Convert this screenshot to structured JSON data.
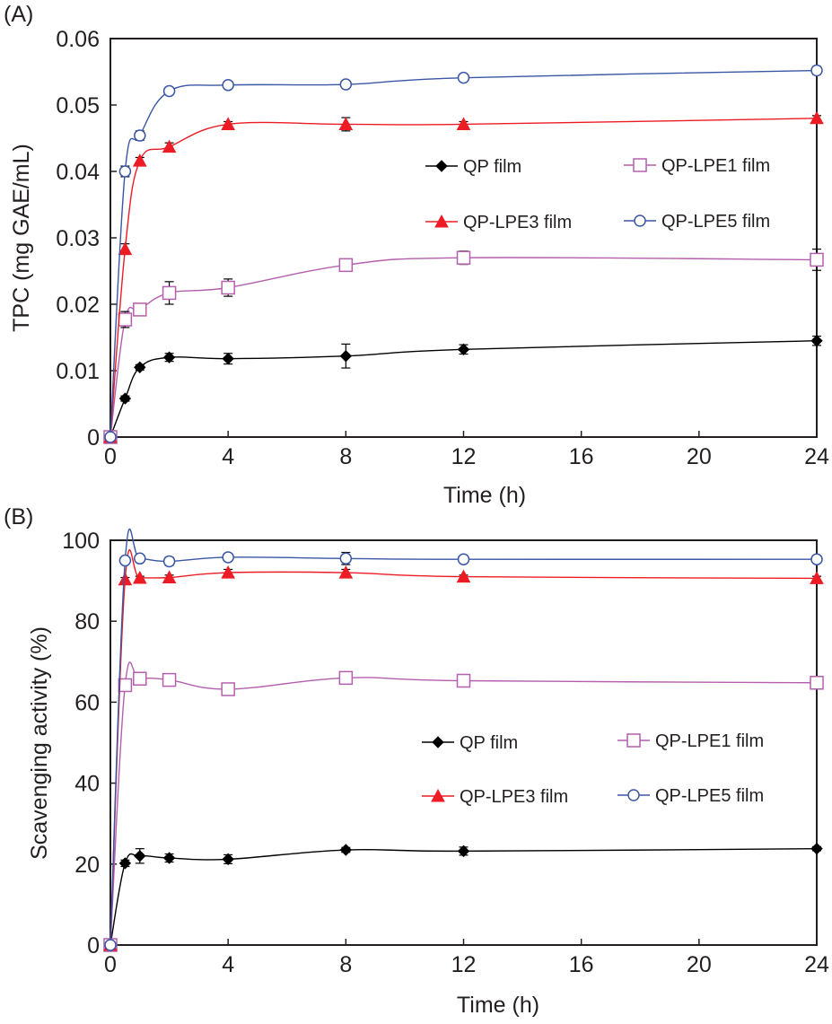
{
  "figure": {
    "panels": [
      "(A)",
      "(B)"
    ]
  },
  "legend_labels": [
    "QP film",
    "QP-LPE1 film",
    "QP-LPE3 film",
    "QP-LPE5 film"
  ],
  "colors": {
    "QP film": "#000000",
    "QP-LPE1 film": "#b45fae",
    "QP-LPE3 film": "#ed1c24",
    "QP-LPE5 film": "#3a56a5",
    "axis": "#231f20"
  },
  "chart_data": [
    {
      "type": "line",
      "panel": "(A)",
      "title": "",
      "xlabel": "Time (h)",
      "ylabel": "TPC (mg GAE/mL)",
      "xlim": [
        0,
        24
      ],
      "ylim": [
        0,
        0.06
      ],
      "xticks": [
        0,
        4,
        8,
        12,
        16,
        20,
        24
      ],
      "xtick_labels": [
        "0",
        "4",
        "8",
        "12",
        "16",
        "20",
        "24"
      ],
      "yticks": [
        0,
        0.01,
        0.02,
        0.03,
        0.04,
        0.05,
        0.06
      ],
      "ytick_labels": [
        "0",
        "0.01",
        "0.02",
        "0.03",
        "0.04",
        "0.05",
        "0.06"
      ],
      "grid": false,
      "legend_position": "center-right",
      "x": [
        0,
        0.5,
        1,
        2,
        4,
        8,
        12,
        24
      ],
      "series": [
        {
          "name": "QP film",
          "marker": "diamond-filled",
          "values": [
            0,
            0.0058,
            0.0105,
            0.012,
            0.0118,
            0.0122,
            0.0132,
            0.0145
          ],
          "errors": [
            0,
            0.0004,
            0.0004,
            0.0006,
            0.0008,
            0.0018,
            0.0007,
            0.0007
          ]
        },
        {
          "name": "QP-LPE1 film",
          "marker": "square-open",
          "values": [
            0,
            0.0177,
            0.0192,
            0.0217,
            0.0225,
            0.0259,
            0.027,
            0.0267
          ],
          "errors": [
            0,
            0.0012,
            0.0003,
            0.0017,
            0.0013,
            0.0003,
            0.001,
            0.0016
          ]
        },
        {
          "name": "QP-LPE3 film",
          "marker": "triangle-filled",
          "values": [
            0,
            0.0283,
            0.0416,
            0.0437,
            0.0471,
            0.0471,
            0.0471,
            0.048
          ],
          "errors": [
            0,
            0.0008,
            0.0005,
            0.0006,
            0.0004,
            0.001,
            0.0004,
            0.0004
          ]
        },
        {
          "name": "QP-LPE5 film",
          "marker": "circle-open",
          "values": [
            0,
            0.04,
            0.0454,
            0.0521,
            0.053,
            0.0531,
            0.0541,
            0.0552
          ],
          "errors": [
            0,
            0.0008,
            0.0007,
            0.0003,
            0.0005,
            0.0002,
            0.0002,
            0.0006
          ]
        }
      ]
    },
    {
      "type": "line",
      "panel": "(B)",
      "title": "",
      "xlabel": "Time (h)",
      "ylabel": "Scavenging activity (%)",
      "xlim": [
        0,
        24
      ],
      "ylim": [
        0,
        100
      ],
      "xticks": [
        0,
        4,
        8,
        12,
        16,
        20,
        24
      ],
      "xtick_labels": [
        "0",
        "4",
        "8",
        "12",
        "16",
        "20",
        "24"
      ],
      "yticks": [
        0,
        20,
        40,
        60,
        80,
        100
      ],
      "ytick_labels": [
        "0",
        "20",
        "40",
        "60",
        "80",
        "100"
      ],
      "grid": false,
      "legend_position": "center-right",
      "x": [
        0,
        0.5,
        1,
        2,
        4,
        8,
        12,
        24
      ],
      "series": [
        {
          "name": "QP film",
          "marker": "diamond-filled",
          "values": [
            0,
            20.2,
            22.0,
            21.5,
            21.2,
            23.5,
            23.2,
            23.8
          ],
          "errors": [
            0,
            0.8,
            1.8,
            1.0,
            1.1,
            0.6,
            1.0,
            0.5
          ]
        },
        {
          "name": "QP-LPE1 film",
          "marker": "square-open",
          "values": [
            0,
            64.2,
            65.8,
            65.5,
            63.2,
            66.0,
            65.3,
            64.8
          ],
          "errors": [
            0,
            0.5,
            0.5,
            1.0,
            0.4,
            1.2,
            0.5,
            1.0
          ]
        },
        {
          "name": "QP-LPE3 film",
          "marker": "triangle-filled",
          "values": [
            0,
            90.3,
            90.7,
            90.8,
            92.0,
            92.0,
            91.0,
            90.6
          ],
          "errors": [
            0,
            0.5,
            0.4,
            0.6,
            0.8,
            0.8,
            0.4,
            0.5
          ]
        },
        {
          "name": "QP-LPE5 film",
          "marker": "circle-open",
          "values": [
            0,
            95.0,
            95.5,
            94.8,
            95.8,
            95.5,
            95.3,
            95.3
          ],
          "errors": [
            0,
            0.5,
            0.4,
            1.0,
            0.4,
            1.5,
            0.4,
            0.8
          ]
        }
      ]
    }
  ]
}
